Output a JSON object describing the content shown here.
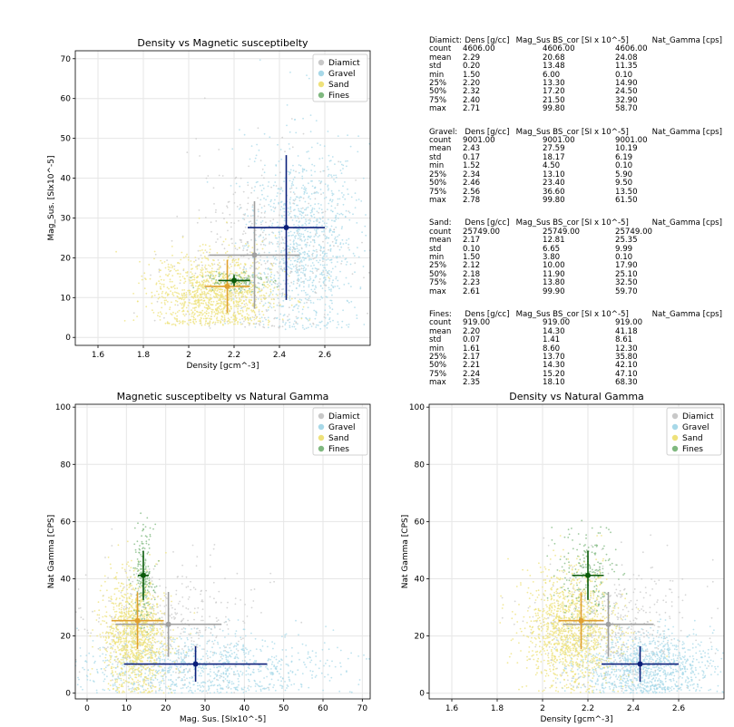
{
  "colors": {
    "Diamict": "#c8c8c8",
    "Gravel": "#a7d8e8",
    "Sand": "#eee17a",
    "Fines": "#7fb87f",
    "mean_Diamict": "#a0a0a0",
    "mean_Gravel": "#0b1f7a",
    "mean_Sand": "#e0a030",
    "mean_Fines": "#0a5a0a"
  },
  "legend": [
    "Diamict",
    "Gravel",
    "Sand",
    "Fines"
  ],
  "chart_data": [
    {
      "type": "scatter",
      "title": "Density vs Magnetic susceptibelty",
      "xlabel": "Density [gcm^-3]",
      "ylabel": "Mag_Sus. [SIx10^-5]",
      "xlim": [
        1.5,
        2.8
      ],
      "ylim": [
        -2,
        72
      ],
      "xticks": [
        1.6,
        1.8,
        2.0,
        2.2,
        2.4,
        2.6
      ],
      "yticks": [
        0,
        10,
        20,
        30,
        40,
        50,
        60,
        70
      ],
      "grid": true,
      "legend_position": "top-right",
      "series": [
        {
          "name": "Diamict",
          "mean": [
            2.29,
            20.68
          ],
          "x_range": [
            2.09,
            2.49
          ],
          "y_range": [
            7.2,
            34.2
          ]
        },
        {
          "name": "Gravel",
          "mean": [
            2.43,
            27.59
          ],
          "x_range": [
            2.26,
            2.6
          ],
          "y_range": [
            9.4,
            45.8
          ]
        },
        {
          "name": "Sand",
          "mean": [
            2.17,
            12.81
          ],
          "x_range": [
            2.07,
            2.27
          ],
          "y_range": [
            6.2,
            19.5
          ]
        },
        {
          "name": "Fines",
          "mean": [
            2.2,
            14.3
          ],
          "x_range": [
            2.13,
            2.27
          ],
          "y_range": [
            12.9,
            15.7
          ]
        }
      ]
    },
    {
      "type": "scatter",
      "title": "Magnetic susceptibelty vs Natural Gamma",
      "xlabel": "Mag. Sus. [SIx10^-5]",
      "ylabel": "Nat Gamma [CPS]",
      "xlim": [
        -3,
        72
      ],
      "ylim": [
        -2,
        101
      ],
      "xticks": [
        0,
        10,
        20,
        30,
        40,
        50,
        60,
        70
      ],
      "yticks": [
        0,
        20,
        40,
        60,
        80,
        100
      ],
      "grid": true,
      "legend_position": "top-right",
      "series": [
        {
          "name": "Diamict",
          "mean": [
            20.68,
            24.08
          ],
          "x_range": [
            7.2,
            34.2
          ],
          "y_range": [
            12.7,
            35.4
          ]
        },
        {
          "name": "Gravel",
          "mean": [
            27.59,
            10.19
          ],
          "x_range": [
            9.4,
            45.8
          ],
          "y_range": [
            4.0,
            16.4
          ]
        },
        {
          "name": "Sand",
          "mean": [
            12.81,
            25.35
          ],
          "x_range": [
            6.2,
            19.5
          ],
          "y_range": [
            15.4,
            35.3
          ]
        },
        {
          "name": "Fines",
          "mean": [
            14.3,
            41.18
          ],
          "x_range": [
            12.9,
            15.7
          ],
          "y_range": [
            32.6,
            49.8
          ]
        }
      ]
    },
    {
      "type": "scatter",
      "title": "Density vs Natural Gamma",
      "xlabel": "Density [gcm^-3]",
      "ylabel": "Nat Gamma [CPS]",
      "xlim": [
        1.5,
        2.8
      ],
      "ylim": [
        -2,
        101
      ],
      "xticks": [
        1.6,
        1.8,
        2.0,
        2.2,
        2.4,
        2.6
      ],
      "yticks": [
        0,
        20,
        40,
        60,
        80,
        100
      ],
      "grid": true,
      "legend_position": "top-right",
      "series": [
        {
          "name": "Diamict",
          "mean": [
            2.29,
            24.08
          ],
          "x_range": [
            2.09,
            2.49
          ],
          "y_range": [
            12.7,
            35.4
          ]
        },
        {
          "name": "Gravel",
          "mean": [
            2.43,
            10.19
          ],
          "x_range": [
            2.26,
            2.6
          ],
          "y_range": [
            4.0,
            16.4
          ]
        },
        {
          "name": "Sand",
          "mean": [
            2.17,
            25.35
          ],
          "x_range": [
            2.07,
            2.27
          ],
          "y_range": [
            15.4,
            35.3
          ]
        },
        {
          "name": "Fines",
          "mean": [
            2.2,
            41.18
          ],
          "x_range": [
            2.13,
            2.27
          ],
          "y_range": [
            32.6,
            49.8
          ]
        }
      ]
    }
  ],
  "stats": [
    {
      "header": [
        "Diamict:",
        "Dens [g/cc]",
        "Mag_Sus BS_cor [SI x 10^-5]",
        "Nat_Gamma [cps]"
      ],
      "rows": [
        [
          "count",
          "4606.00",
          "4606.00",
          "4606.00"
        ],
        [
          "mean",
          "2.29",
          "20.68",
          "24.08"
        ],
        [
          "std",
          "0.20",
          "13.48",
          "11.35"
        ],
        [
          "min",
          "1.50",
          "6.00",
          "0.10"
        ],
        [
          "25%",
          "2.20",
          "13.30",
          "14.90"
        ],
        [
          "50%",
          "2.32",
          "17.20",
          "24.50"
        ],
        [
          "75%",
          "2.40",
          "21.50",
          "32.90"
        ],
        [
          "max",
          "2.71",
          "99.80",
          "58.70"
        ]
      ]
    },
    {
      "header": [
        "Gravel:",
        "Dens [g/cc]",
        "Mag_Sus BS_cor [SI x 10^-5]",
        "Nat_Gamma [cps]"
      ],
      "rows": [
        [
          "count",
          "9001.00",
          "9001.00",
          "9001.00"
        ],
        [
          "mean",
          "2.43",
          "27.59",
          "10.19"
        ],
        [
          "std",
          "0.17",
          "18.17",
          "6.19"
        ],
        [
          "min",
          "1.52",
          "4.50",
          "0.10"
        ],
        [
          "25%",
          "2.34",
          "13.10",
          "5.90"
        ],
        [
          "50%",
          "2.46",
          "23.40",
          "9.50"
        ],
        [
          "75%",
          "2.56",
          "36.60",
          "13.50"
        ],
        [
          "max",
          "2.78",
          "99.80",
          "61.50"
        ]
      ]
    },
    {
      "header": [
        "Sand:",
        "Dens [g/cc]",
        "Mag_Sus BS_cor [SI x 10^-5]",
        "Nat_Gamma [cps]"
      ],
      "rows": [
        [
          "count",
          "25749.00",
          "25749.00",
          "25749.00"
        ],
        [
          "mean",
          "2.17",
          "12.81",
          "25.35"
        ],
        [
          "std",
          "0.10",
          "6.65",
          "9.99"
        ],
        [
          "min",
          "1.50",
          "3.80",
          "0.10"
        ],
        [
          "25%",
          "2.12",
          "10.00",
          "17.90"
        ],
        [
          "50%",
          "2.18",
          "11.90",
          "25.10"
        ],
        [
          "75%",
          "2.23",
          "13.80",
          "32.50"
        ],
        [
          "max",
          "2.61",
          "99.90",
          "59.70"
        ]
      ]
    },
    {
      "header": [
        "Fines:",
        "Dens [g/cc]",
        "Mag_Sus BS_cor [SI x 10^-5]",
        "Nat_Gamma [cps]"
      ],
      "rows": [
        [
          "count",
          "919.00",
          "919.00",
          "919.00"
        ],
        [
          "mean",
          "2.20",
          "14.30",
          "41.18"
        ],
        [
          "std",
          "0.07",
          "1.41",
          "8.61"
        ],
        [
          "min",
          "1.61",
          "8.60",
          "12.30"
        ],
        [
          "25%",
          "2.17",
          "13.70",
          "35.80"
        ],
        [
          "50%",
          "2.21",
          "14.30",
          "42.10"
        ],
        [
          "75%",
          "2.24",
          "15.20",
          "47.10"
        ],
        [
          "max",
          "2.35",
          "18.10",
          "68.30"
        ]
      ]
    }
  ]
}
